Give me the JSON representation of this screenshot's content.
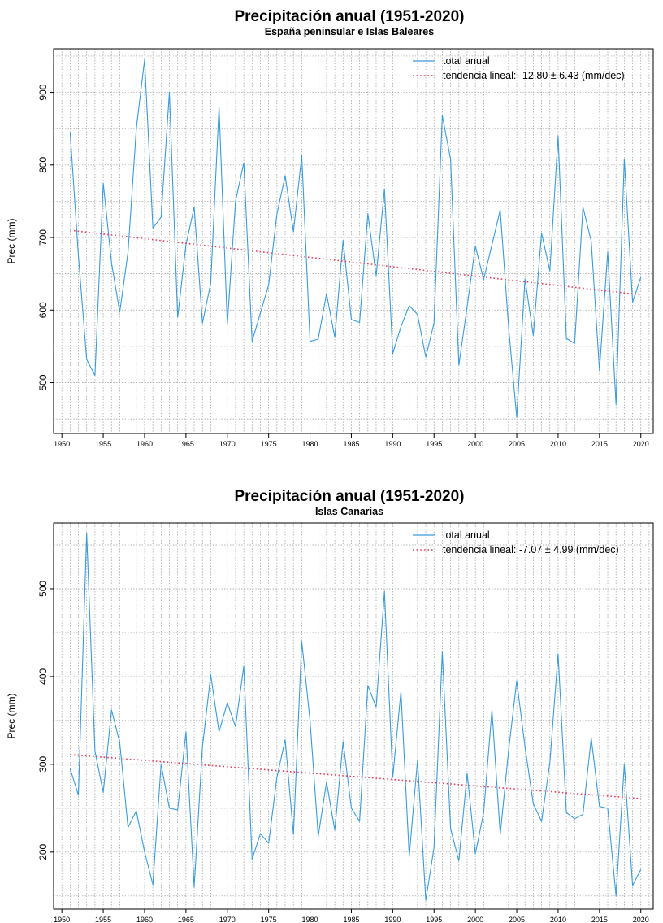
{
  "chart_data": [
    {
      "type": "line",
      "title": "Precipitación anual (1951-2020)",
      "subtitle": "España peninsular e Islas Baleares",
      "ylabel": "Prec (mm)",
      "xlabel": "",
      "xlim": [
        1949,
        2021.5
      ],
      "ylim": [
        430,
        960
      ],
      "xticks": [
        1950,
        1955,
        1960,
        1965,
        1970,
        1975,
        1980,
        1985,
        1990,
        1995,
        2000,
        2005,
        2010,
        2015,
        2020
      ],
      "yticks": [
        500,
        600,
        700,
        800,
        900
      ],
      "grid": true,
      "legend_position": "top-right",
      "colors": {
        "total": "#3a9bd9",
        "trend": "#e0405a"
      },
      "series": [
        {
          "name": "total anual",
          "x": [
            1951,
            1952,
            1953,
            1954,
            1955,
            1956,
            1957,
            1958,
            1959,
            1960,
            1961,
            1962,
            1963,
            1964,
            1965,
            1966,
            1967,
            1968,
            1969,
            1970,
            1971,
            1972,
            1973,
            1974,
            1975,
            1976,
            1977,
            1978,
            1979,
            1980,
            1981,
            1982,
            1983,
            1984,
            1985,
            1986,
            1987,
            1988,
            1989,
            1990,
            1991,
            1992,
            1993,
            1994,
            1995,
            1996,
            1997,
            1998,
            1999,
            2000,
            2001,
            2002,
            2003,
            2004,
            2005,
            2006,
            2007,
            2008,
            2009,
            2010,
            2011,
            2012,
            2013,
            2014,
            2015,
            2016,
            2017,
            2018,
            2019,
            2020
          ],
          "values": [
            845,
            675,
            532,
            510,
            775,
            665,
            597,
            680,
            850,
            945,
            713,
            728,
            900,
            590,
            690,
            742,
            582,
            637,
            880,
            580,
            750,
            803,
            557,
            596,
            635,
            732,
            785,
            708,
            813,
            557,
            560,
            623,
            562,
            696,
            587,
            583,
            733,
            647,
            767,
            540,
            577,
            606,
            594,
            535,
            582,
            868,
            808,
            524,
            605,
            688,
            642,
            690,
            738,
            578,
            452,
            643,
            565,
            706,
            654,
            840,
            561,
            554,
            742,
            695,
            517,
            680,
            470,
            808,
            611,
            645
          ]
        },
        {
          "name": "tendencia lineal: -12.80 ± 6.43 (mm/dec)",
          "style": "dotted",
          "x": [
            1951,
            2020
          ],
          "values": [
            710,
            621
          ]
        }
      ]
    },
    {
      "type": "line",
      "title": "Precipitación anual (1951-2020)",
      "subtitle": "Islas Canarias",
      "ylabel": "Prec (mm)",
      "xlabel": "",
      "xlim": [
        1949,
        2021.5
      ],
      "ylim": [
        135,
        575
      ],
      "xticks": [
        1950,
        1955,
        1960,
        1965,
        1970,
        1975,
        1980,
        1985,
        1990,
        1995,
        2000,
        2005,
        2010,
        2015,
        2020
      ],
      "yticks": [
        200,
        300,
        400,
        500
      ],
      "grid": true,
      "legend_position": "top-right",
      "colors": {
        "total": "#3a9bd9",
        "trend": "#e0405a"
      },
      "series": [
        {
          "name": "total anual",
          "x": [
            1951,
            1952,
            1953,
            1954,
            1955,
            1956,
            1957,
            1958,
            1959,
            1960,
            1961,
            1962,
            1963,
            1964,
            1965,
            1966,
            1967,
            1968,
            1969,
            1970,
            1971,
            1972,
            1973,
            1974,
            1975,
            1976,
            1977,
            1978,
            1979,
            1980,
            1981,
            1982,
            1983,
            1984,
            1985,
            1986,
            1987,
            1988,
            1989,
            1990,
            1991,
            1992,
            1993,
            1994,
            1995,
            1996,
            1997,
            1998,
            1999,
            2000,
            2001,
            2002,
            2003,
            2004,
            2005,
            2006,
            2007,
            2008,
            2009,
            2010,
            2011,
            2012,
            2013,
            2014,
            2015,
            2016,
            2017,
            2018,
            2019,
            2020
          ],
          "values": [
            295,
            265,
            563,
            315,
            268,
            362,
            325,
            228,
            247,
            200,
            163,
            300,
            250,
            248,
            337,
            160,
            320,
            402,
            337,
            370,
            343,
            412,
            192,
            221,
            210,
            285,
            328,
            220,
            440,
            350,
            218,
            280,
            225,
            326,
            250,
            235,
            390,
            365,
            497,
            285,
            383,
            195,
            305,
            145,
            205,
            428,
            227,
            190,
            290,
            198,
            245,
            362,
            220,
            315,
            395,
            320,
            255,
            235,
            302,
            426,
            245,
            238,
            243,
            330,
            252,
            250,
            150,
            300,
            162,
            180
          ]
        },
        {
          "name": "tendencia lineal: -7.07 ± 4.99 (mm/dec)",
          "style": "dotted",
          "x": [
            1951,
            2020
          ],
          "values": [
            311,
            261
          ]
        }
      ]
    }
  ]
}
